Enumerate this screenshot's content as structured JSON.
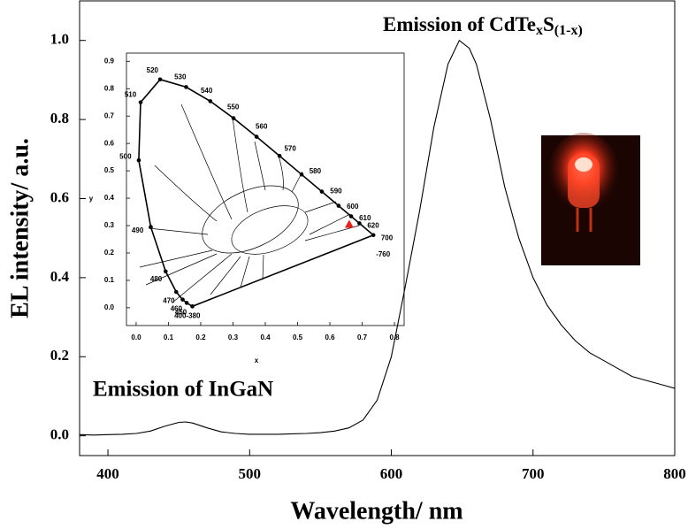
{
  "chart_data": [
    {
      "type": "line",
      "x": [
        380,
        390,
        400,
        410,
        420,
        430,
        440,
        450,
        455,
        460,
        470,
        480,
        490,
        500,
        510,
        520,
        530,
        540,
        550,
        560,
        570,
        580,
        590,
        600,
        610,
        620,
        630,
        640,
        648,
        655,
        660,
        670,
        680,
        690,
        700,
        710,
        720,
        730,
        740,
        750,
        760,
        770,
        780,
        790,
        800
      ],
      "values": [
        0.003,
        0.002,
        0.003,
        0.004,
        0.006,
        0.012,
        0.024,
        0.034,
        0.035,
        0.032,
        0.02,
        0.01,
        0.006,
        0.004,
        0.004,
        0.004,
        0.005,
        0.006,
        0.008,
        0.012,
        0.02,
        0.04,
        0.09,
        0.2,
        0.38,
        0.57,
        0.78,
        0.94,
        1.0,
        0.98,
        0.94,
        0.8,
        0.63,
        0.5,
        0.4,
        0.33,
        0.28,
        0.24,
        0.21,
        0.19,
        0.17,
        0.15,
        0.14,
        0.13,
        0.12
      ],
      "color": "#000000",
      "xlim": [
        380,
        800
      ],
      "xticks": [
        400,
        500,
        600,
        700,
        800
      ],
      "ylim": [
        -0.05,
        1.1
      ],
      "yticks": [
        {
          "value": 0,
          "label": "0.0"
        },
        0.2,
        0.4,
        0.6,
        0.8,
        {
          "value": 1,
          "label": "1.0"
        }
      ],
      "xlabel": "Wavelength/ nm",
      "ylabel": "EL intensity/ a.u.",
      "annotations": [
        "Emission of InGaN",
        [
          "Emission of CdTe",
          "x",
          "S",
          "(1-x)"
        ]
      ]
    },
    {
      "type": "scatter",
      "x": [
        0.1741,
        0.1566,
        0.144,
        0.1241,
        0.0913,
        0.0454,
        0.0082,
        0.0139,
        0.0743,
        0.1547,
        0.2296,
        0.3016,
        0.3731,
        0.4441,
        0.5125,
        0.5752,
        0.627,
        0.6658,
        0.6915,
        0.7347
      ],
      "values": [
        0.005,
        0.0177,
        0.0297,
        0.0578,
        0.1327,
        0.295,
        0.5384,
        0.7502,
        0.8338,
        0.8059,
        0.7543,
        0.6923,
        0.6245,
        0.5547,
        0.4866,
        0.4242,
        0.3725,
        0.334,
        0.3083,
        0.2653
      ],
      "point_labels": [
        "400-380",
        "450",
        "460",
        "470",
        "480",
        "490",
        "500",
        "510",
        "520",
        "530",
        "540",
        "550",
        "560",
        "570",
        "580",
        "590",
        "600",
        "610",
        "620",
        "700"
      ],
      "end_label": "-760",
      "color": "#000000",
      "marker": {
        "x": 0.66,
        "y": 0.305,
        "color": "#e8201c"
      },
      "xlim": [
        -0.03,
        0.83
      ],
      "xticks": [
        {
          "value": 0,
          "label": "0.0"
        },
        0.1,
        0.2,
        0.3,
        0.4,
        0.5,
        0.6,
        0.7,
        0.8
      ],
      "ylim": [
        -0.065,
        0.93
      ],
      "yticks": [
        {
          "value": 0,
          "label": "0.0"
        },
        0.1,
        0.2,
        0.3,
        0.4,
        0.5,
        0.6,
        0.7,
        0.8,
        0.9
      ],
      "xlabel": "x",
      "ylabel": "y"
    }
  ]
}
